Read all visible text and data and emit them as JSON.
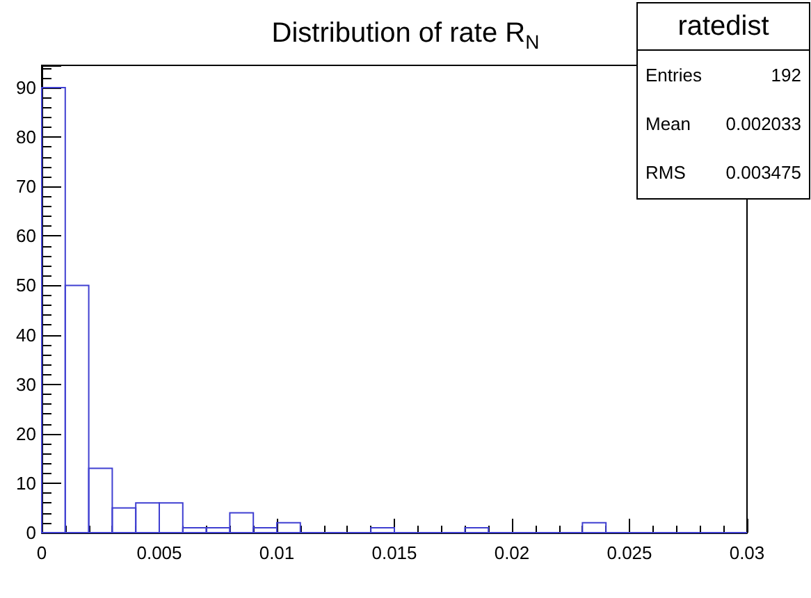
{
  "chart_data": {
    "type": "histogram",
    "title": "Distribution of rate R$_{N}$",
    "bins": [
      0,
      0.001,
      0.002,
      0.003,
      0.004,
      0.005,
      0.006,
      0.007,
      0.008,
      0.009,
      0.01,
      0.011,
      0.012,
      0.013,
      0.014,
      0.015,
      0.016,
      0.017,
      0.018,
      0.019,
      0.02,
      0.021,
      0.022,
      0.023,
      0.024,
      0.025,
      0.026,
      0.027,
      0.028,
      0.029,
      0.03
    ],
    "values": [
      90,
      50,
      13,
      5,
      6,
      6,
      1,
      1,
      4,
      1,
      2,
      0,
      0,
      0,
      1,
      0,
      0,
      0,
      1,
      0,
      0,
      0,
      0,
      2,
      0,
      0,
      0,
      0,
      0,
      0
    ],
    "color": "#3f3fd1",
    "xlim": [
      0,
      0.03
    ],
    "xticks": [
      0,
      0.005,
      0.01,
      0.015,
      0.02,
      0.025,
      0.03
    ],
    "ylim": [
      0,
      94.5
    ],
    "yticks": [
      0,
      10,
      20,
      30,
      40,
      50,
      60,
      70,
      80,
      90
    ],
    "grid": false,
    "annotations": [
      "ratedist",
      "Entries",
      "192",
      "Mean",
      "0.002033",
      "RMS",
      "0.003475"
    ]
  }
}
